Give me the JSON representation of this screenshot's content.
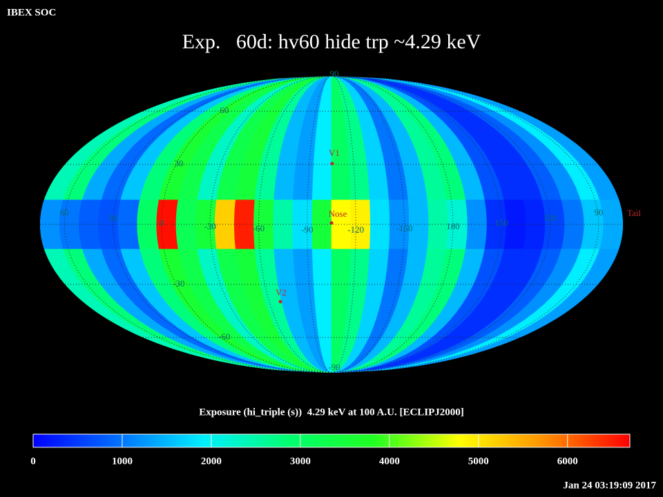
{
  "chart_data": {
    "type": "skymap",
    "header": "IBEX SOC",
    "title": "Exp.   60d: hv60 hide trp ~4.29 keV",
    "colorbar_label": "Exposure (hi_triple (s))  4.29 keV at 100 A.U. [ECLIPJ2000]",
    "timestamp": "Jan 24 03:19:09 2017",
    "center_lon": -105,
    "lon_bins": [
      75,
      63,
      51,
      39,
      27,
      15,
      3,
      -9,
      -21,
      -33,
      -45,
      -57,
      -69,
      -81,
      -93,
      -105,
      -117,
      -129,
      -141,
      -153,
      -165,
      -177,
      171,
      159,
      147,
      135,
      123,
      111,
      99,
      87,
      75
    ],
    "values": [
      2400,
      2800,
      1400,
      900,
      1600,
      2800,
      3600,
      3300,
      2300,
      3300,
      3500,
      2600,
      1500,
      1300,
      1900,
      3000,
      2700,
      1700,
      1000,
      1500,
      2600,
      2800,
      1500,
      700,
      400,
      400,
      800,
      1200,
      1900,
      1300
    ],
    "band_lat": [
      -12,
      12
    ],
    "band_values": [
      1200,
      1000,
      800,
      700,
      900,
      3000,
      6600,
      3200,
      3500,
      5200,
      6500,
      3500,
      2500,
      1800,
      3500,
      4800,
      4900,
      1800,
      1200,
      1500,
      2500,
      2200,
      1200,
      400,
      200,
      300,
      600,
      1000,
      1600,
      1400
    ],
    "zlim": [
      0,
      6700
    ],
    "zticks": [
      0,
      1000,
      2000,
      3000,
      4000,
      5000,
      6000
    ],
    "colormap": [
      "#0000ff",
      "#0070ff",
      "#00f0ff",
      "#00ff70",
      "#20ff20",
      "#ffff00",
      "#ff9000",
      "#ff0000"
    ],
    "lon_ticks": [
      60,
      30,
      0,
      -30,
      -60,
      -90,
      -120,
      -150,
      180,
      150,
      120,
      90
    ],
    "lat_ticks": [
      90,
      60,
      30,
      -30,
      -60,
      -90
    ],
    "grid": true,
    "annotations": [
      "V1",
      "Nose",
      "V2",
      "Tail"
    ]
  }
}
